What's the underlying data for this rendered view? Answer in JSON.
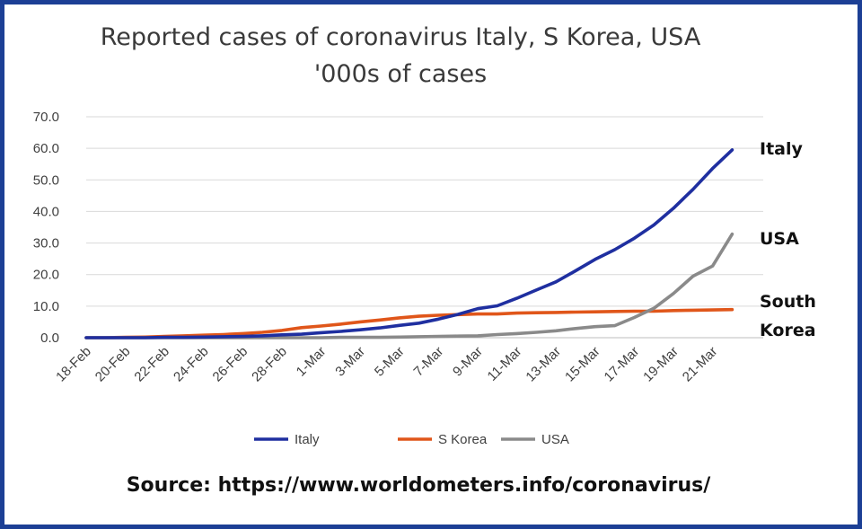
{
  "chart_data": {
    "type": "line",
    "title": "Reported cases of coronavirus  Italy, S Korea, USA",
    "subtitle": "'000s of cases",
    "ylim": [
      0,
      70
    ],
    "yticks": [
      "70.0",
      "60.0",
      "50.0",
      "40.0",
      "30.0",
      "20.0",
      "10.0",
      "0.0"
    ],
    "ytick_values": [
      70,
      60,
      50,
      40,
      30,
      20,
      10,
      0
    ],
    "grid": true,
    "legend_position": "bottom",
    "categories": [
      "18-Feb",
      "19-Feb",
      "20-Feb",
      "21-Feb",
      "22-Feb",
      "23-Feb",
      "24-Feb",
      "25-Feb",
      "26-Feb",
      "27-Feb",
      "28-Feb",
      "29-Feb",
      "1-Mar",
      "2-Mar",
      "3-Mar",
      "4-Mar",
      "5-Mar",
      "6-Mar",
      "7-Mar",
      "8-Mar",
      "9-Mar",
      "10-Mar",
      "11-Mar",
      "12-Mar",
      "13-Mar",
      "14-Mar",
      "15-Mar",
      "16-Mar",
      "17-Mar",
      "18-Mar",
      "19-Mar",
      "20-Mar",
      "21-Mar",
      "22-Mar"
    ],
    "xtick_labels": [
      "18-Feb",
      "20-Feb",
      "22-Feb",
      "24-Feb",
      "26-Feb",
      "28-Feb",
      "1-Mar",
      "3-Mar",
      "5-Mar",
      "7-Mar",
      "9-Mar",
      "11-Mar",
      "13-Mar",
      "15-Mar",
      "17-Mar",
      "19-Mar",
      "21-Mar"
    ],
    "series": [
      {
        "name": "Italy",
        "color": "#1f2fa0",
        "end_label": [
          "Italy"
        ],
        "values": [
          0,
          0,
          0,
          0,
          0.1,
          0.1,
          0.2,
          0.3,
          0.4,
          0.6,
          0.9,
          1.1,
          1.6,
          2.0,
          2.5,
          3.1,
          3.9,
          4.6,
          5.9,
          7.4,
          9.2,
          10.1,
          12.5,
          15.1,
          17.7,
          21.2,
          24.8,
          27.9,
          31.5,
          35.7,
          41.0,
          47.0,
          53.6,
          59.5
        ]
      },
      {
        "name": "S Korea",
        "color": "#e0561a",
        "end_label": [
          "South",
          "Korea"
        ],
        "values": [
          0,
          0,
          0.1,
          0.2,
          0.4,
          0.6,
          0.8,
          1.0,
          1.3,
          1.7,
          2.3,
          3.2,
          3.7,
          4.3,
          5.0,
          5.6,
          6.3,
          6.8,
          7.1,
          7.3,
          7.5,
          7.5,
          7.8,
          7.9,
          8.0,
          8.1,
          8.2,
          8.3,
          8.4,
          8.4,
          8.6,
          8.7,
          8.8,
          8.9
        ]
      },
      {
        "name": "USA",
        "color": "#8a8a8a",
        "end_label": [
          "USA"
        ],
        "values": [
          0,
          0,
          0,
          0,
          0,
          0,
          0,
          0,
          0,
          0,
          0,
          0,
          0,
          0.1,
          0.1,
          0.1,
          0.2,
          0.3,
          0.4,
          0.5,
          0.6,
          1.0,
          1.3,
          1.7,
          2.2,
          2.9,
          3.5,
          3.8,
          6.4,
          9.3,
          14.0,
          19.5,
          22.7,
          32.8
        ]
      }
    ],
    "source": "Source:  https://www.worldometers.info/coronavirus/"
  }
}
